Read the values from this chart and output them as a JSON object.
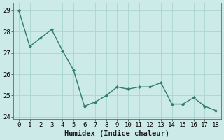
{
  "x": [
    0,
    1,
    2,
    3,
    4,
    5,
    6,
    7,
    8,
    9,
    10,
    11,
    12,
    13,
    14,
    15,
    16,
    17,
    18
  ],
  "y": [
    29.0,
    27.3,
    27.7,
    28.1,
    27.1,
    26.2,
    24.5,
    24.7,
    25.0,
    25.4,
    25.3,
    25.4,
    25.4,
    25.6,
    24.6,
    24.6,
    24.9,
    24.5,
    24.3
  ],
  "line_color": "#2e7d6e",
  "marker": "D",
  "marker_size": 2.0,
  "bg_color": "#cceae7",
  "grid_color": "#aad4d0",
  "xlabel": "Humidex (Indice chaleur)",
  "xlim": [
    -0.5,
    18.5
  ],
  "ylim": [
    23.9,
    29.35
  ],
  "yticks": [
    24,
    25,
    26,
    27,
    28,
    29
  ],
  "xticks": [
    0,
    1,
    2,
    3,
    4,
    5,
    6,
    7,
    8,
    9,
    10,
    11,
    12,
    13,
    14,
    15,
    16,
    17,
    18
  ],
  "label_fontsize": 7.5,
  "tick_fontsize": 6.5,
  "line_width": 1.0
}
